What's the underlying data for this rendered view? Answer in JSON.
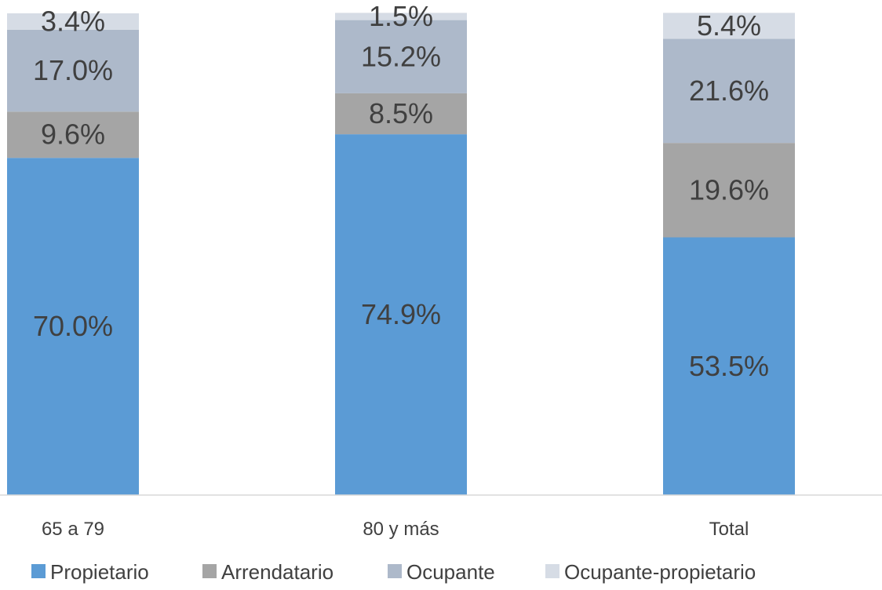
{
  "chart_data": {
    "type": "bar",
    "stacked": true,
    "categories": [
      "65 a 79",
      "80 y más",
      "Total"
    ],
    "series": [
      {
        "name": "Propietario",
        "values": [
          70.0,
          74.9,
          53.5
        ],
        "labels": [
          "70.0%",
          "74.9%",
          "53.5%"
        ],
        "color": "#5B9BD5"
      },
      {
        "name": "Arrendatario",
        "values": [
          9.6,
          8.5,
          19.6
        ],
        "labels": [
          "9.6%",
          "8.5%",
          "19.6%"
        ],
        "color": "#A5A5A5"
      },
      {
        "name": "Ocupante",
        "values": [
          17.0,
          15.2,
          21.6
        ],
        "labels": [
          "17.0%",
          "15.2%",
          "21.6%"
        ],
        "color": "#ADB9CA"
      },
      {
        "name": "Ocupante-propietario",
        "values": [
          3.4,
          1.5,
          5.4
        ],
        "labels": [
          "3.4%",
          "1.5%",
          "5.4%"
        ],
        "color": "#D6DCE5"
      }
    ],
    "ylim": [
      0,
      100
    ],
    "grid": false,
    "legend_position": "bottom"
  }
}
